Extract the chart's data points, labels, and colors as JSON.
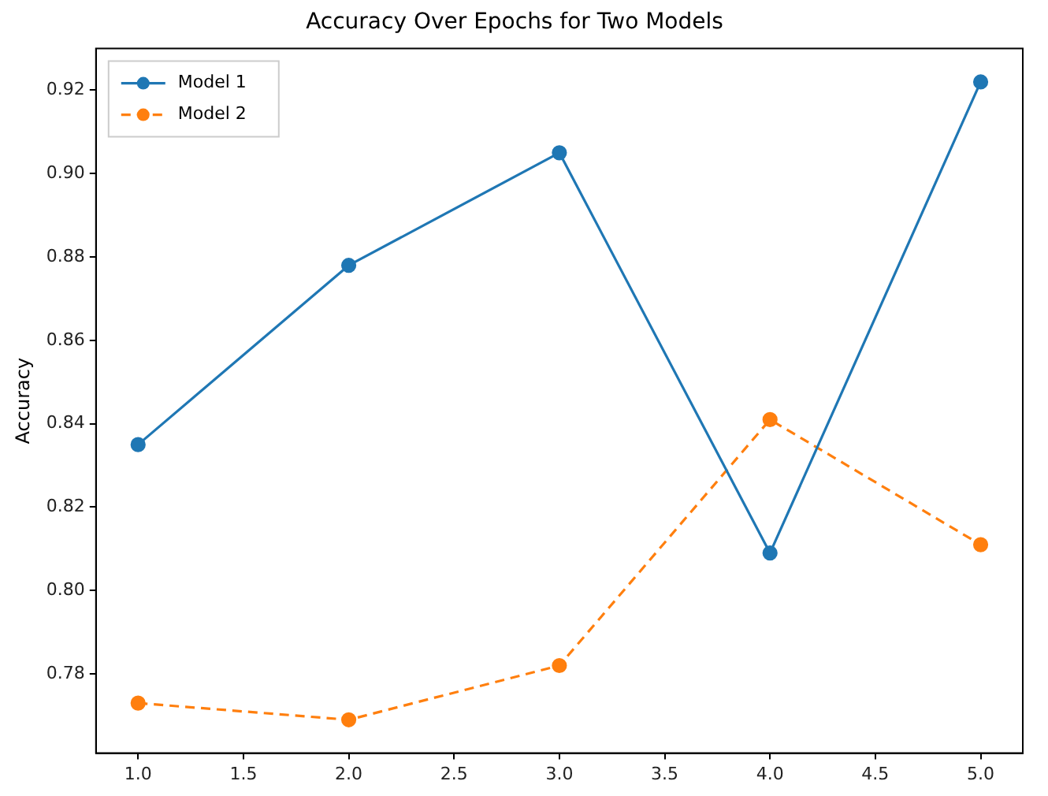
{
  "chart_data": {
    "type": "line",
    "title": "Accuracy Over Epochs for Two Models",
    "ylabel": "Accuracy",
    "x": [
      1,
      2,
      3,
      4,
      5
    ],
    "series": [
      {
        "name": "Model 1",
        "color": "#1f77b4",
        "values": [
          0.835,
          0.878,
          0.905,
          0.809,
          0.922
        ],
        "line_style": "solid"
      },
      {
        "name": "Model 2",
        "color": "#ff7f0e",
        "values": [
          0.773,
          0.769,
          0.782,
          0.841,
          0.811
        ],
        "line_style": "dashed"
      }
    ],
    "xlim": [
      0.8,
      5.2
    ],
    "xticks": [
      {
        "value": 1,
        "label": "1.0"
      },
      {
        "value": 1.5,
        "label": "1.5"
      },
      {
        "value": 2,
        "label": "2.0"
      },
      {
        "value": 2.5,
        "label": "2.5"
      },
      {
        "value": 3,
        "label": "3.0"
      },
      {
        "value": 3.5,
        "label": "3.5"
      },
      {
        "value": 4,
        "label": "4.0"
      },
      {
        "value": 4.5,
        "label": "4.5"
      },
      {
        "value": 5,
        "label": "5.0"
      }
    ],
    "ylim": [
      0.761,
      0.93
    ],
    "yticks": [
      {
        "value": 0.78,
        "label": "0.78"
      },
      {
        "value": 0.8,
        "label": "0.80"
      },
      {
        "value": 0.82,
        "label": "0.82"
      },
      {
        "value": 0.84,
        "label": "0.84"
      },
      {
        "value": 0.86,
        "label": "0.86"
      },
      {
        "value": 0.88,
        "label": "0.88"
      },
      {
        "value": 0.9,
        "label": "0.90"
      },
      {
        "value": 0.92,
        "label": "0.92"
      }
    ],
    "grid": false,
    "legend": "top left",
    "marker": "circle"
  }
}
